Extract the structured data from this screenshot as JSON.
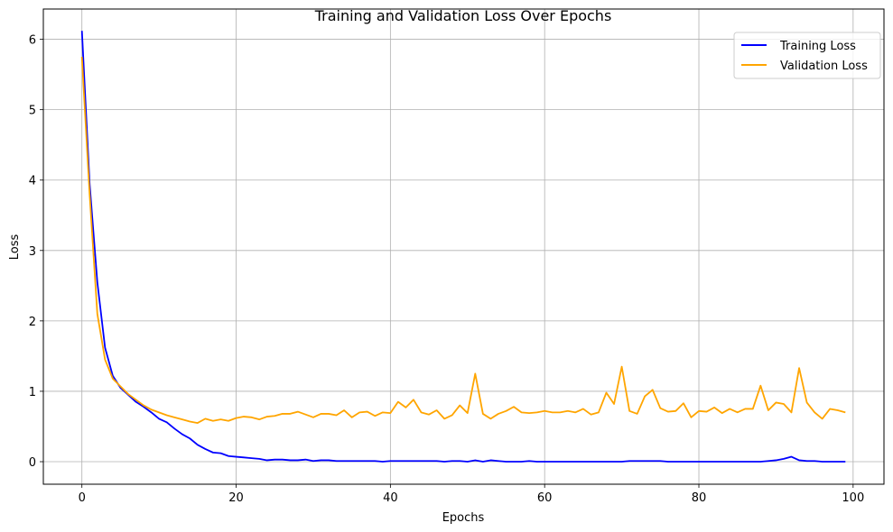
{
  "chart_data": {
    "type": "line",
    "title": "Training and Validation Loss Over Epochs",
    "xlabel": "Epochs",
    "ylabel": "Loss",
    "xlim": [
      -5,
      104
    ],
    "ylim": [
      -0.32,
      6.43
    ],
    "xticks": [
      0,
      20,
      40,
      60,
      80,
      100
    ],
    "yticks": [
      0,
      1,
      2,
      3,
      4,
      5,
      6
    ],
    "grid": true,
    "legend_position": "top-right",
    "series": [
      {
        "name": "Training Loss",
        "color": "#0000ff",
        "values": [
          6.12,
          3.95,
          2.55,
          1.62,
          1.22,
          1.05,
          0.95,
          0.85,
          0.78,
          0.7,
          0.61,
          0.56,
          0.47,
          0.39,
          0.33,
          0.24,
          0.18,
          0.13,
          0.12,
          0.08,
          0.07,
          0.06,
          0.05,
          0.04,
          0.02,
          0.03,
          0.03,
          0.02,
          0.02,
          0.03,
          0.01,
          0.02,
          0.02,
          0.01,
          0.01,
          0.01,
          0.01,
          0.01,
          0.01,
          0.0,
          0.01,
          0.01,
          0.01,
          0.01,
          0.01,
          0.01,
          0.01,
          0.0,
          0.01,
          0.01,
          0.0,
          0.02,
          0.0,
          0.02,
          0.01,
          0.0,
          0.0,
          0.0,
          0.01,
          0.0,
          0.0,
          0.0,
          0.0,
          0.0,
          0.0,
          0.0,
          0.0,
          0.0,
          0.0,
          0.0,
          0.0,
          0.01,
          0.01,
          0.01,
          0.01,
          0.01,
          0.0,
          0.0,
          0.0,
          0.0,
          0.0,
          0.0,
          0.0,
          0.0,
          0.0,
          0.0,
          0.0,
          0.0,
          0.0,
          0.01,
          0.02,
          0.04,
          0.07,
          0.02,
          0.01,
          0.01,
          0.0,
          0.0,
          0.0,
          0.0
        ]
      },
      {
        "name": "Validation Loss",
        "color": "#ffa500",
        "values": [
          5.75,
          3.8,
          2.1,
          1.45,
          1.18,
          1.07,
          0.96,
          0.88,
          0.8,
          0.74,
          0.7,
          0.66,
          0.63,
          0.6,
          0.57,
          0.55,
          0.61,
          0.58,
          0.6,
          0.58,
          0.62,
          0.64,
          0.63,
          0.6,
          0.64,
          0.65,
          0.68,
          0.68,
          0.71,
          0.67,
          0.63,
          0.68,
          0.68,
          0.66,
          0.73,
          0.63,
          0.7,
          0.71,
          0.65,
          0.7,
          0.69,
          0.85,
          0.77,
          0.88,
          0.7,
          0.67,
          0.73,
          0.61,
          0.66,
          0.8,
          0.69,
          1.25,
          0.68,
          0.61,
          0.68,
          0.72,
          0.78,
          0.7,
          0.69,
          0.7,
          0.72,
          0.7,
          0.7,
          0.72,
          0.7,
          0.75,
          0.67,
          0.7,
          0.98,
          0.82,
          1.35,
          0.72,
          0.68,
          0.93,
          1.02,
          0.76,
          0.71,
          0.72,
          0.83,
          0.63,
          0.72,
          0.71,
          0.77,
          0.69,
          0.75,
          0.7,
          0.75,
          0.75,
          1.08,
          0.73,
          0.84,
          0.82,
          0.7,
          1.33,
          0.84,
          0.7,
          0.61,
          0.75,
          0.73,
          0.7
        ]
      }
    ]
  }
}
